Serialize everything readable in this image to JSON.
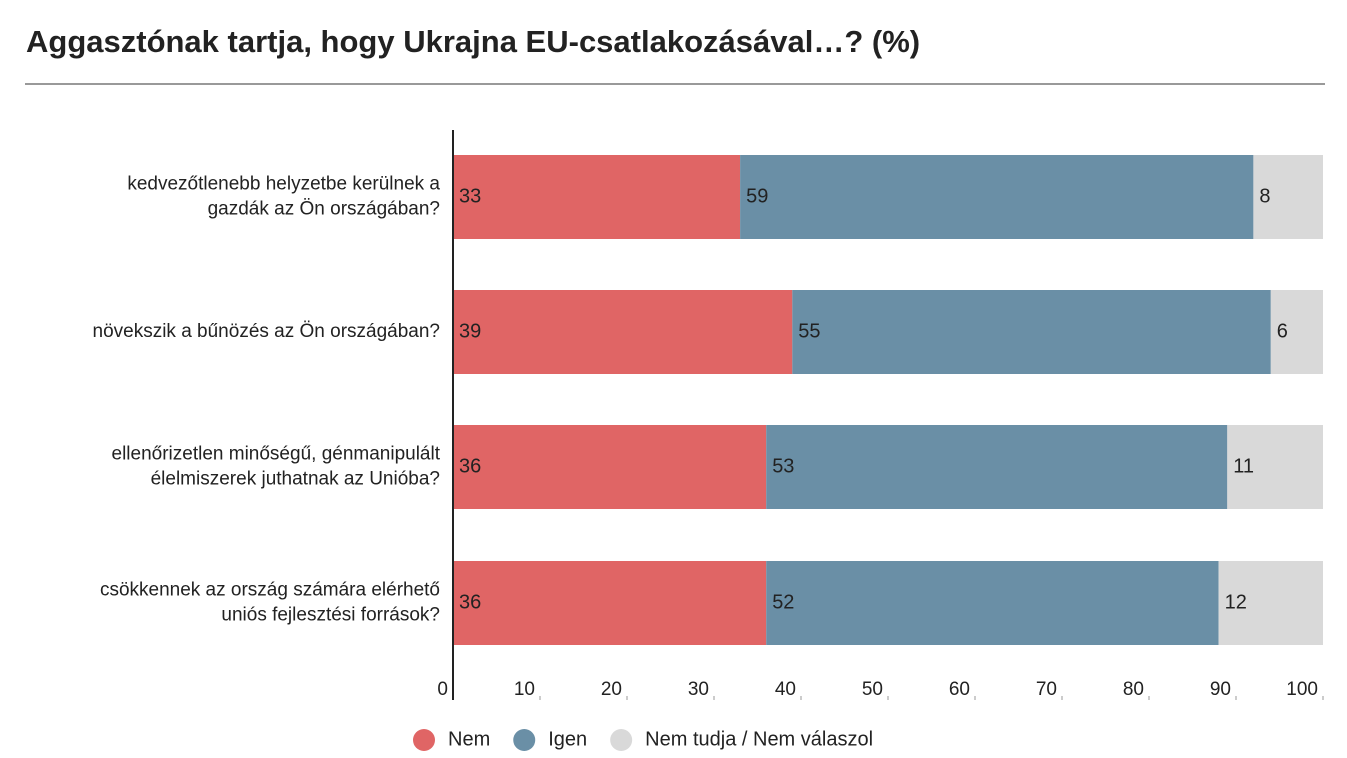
{
  "chart_data": {
    "type": "stacked-barh",
    "title": "Aggasztónak tartja, hogy Ukrajna EU-csatlakozásával…? (%)",
    "categories": [
      [
        "kedvezőtlenebb helyzetbe kerülnek a",
        "gazdák az Ön országában?"
      ],
      [
        "növekszik a bűnözés az Ön országában?"
      ],
      [
        "ellenőrizetlen minőségű, génmanipulált",
        "élelmiszerek juthatnak az Unióba?"
      ],
      [
        "csökkennek az ország számára elérhető",
        "uniós fejlesztési források?"
      ]
    ],
    "series": [
      {
        "name": "Nem",
        "color": "#e06565",
        "values": [
          33,
          39,
          36,
          36
        ]
      },
      {
        "name": "Igen",
        "color": "#6a8fa6",
        "values": [
          59,
          55,
          53,
          52
        ]
      },
      {
        "name": "Nem tudja / Nem válaszol",
        "color": "#d9d9d9",
        "values": [
          8,
          6,
          11,
          12
        ]
      }
    ],
    "xlim": [
      0,
      100
    ],
    "xticks": [
      0,
      10,
      20,
      30,
      40,
      50,
      60,
      70,
      80,
      90,
      100
    ],
    "grid": false,
    "legend": "bottom"
  }
}
